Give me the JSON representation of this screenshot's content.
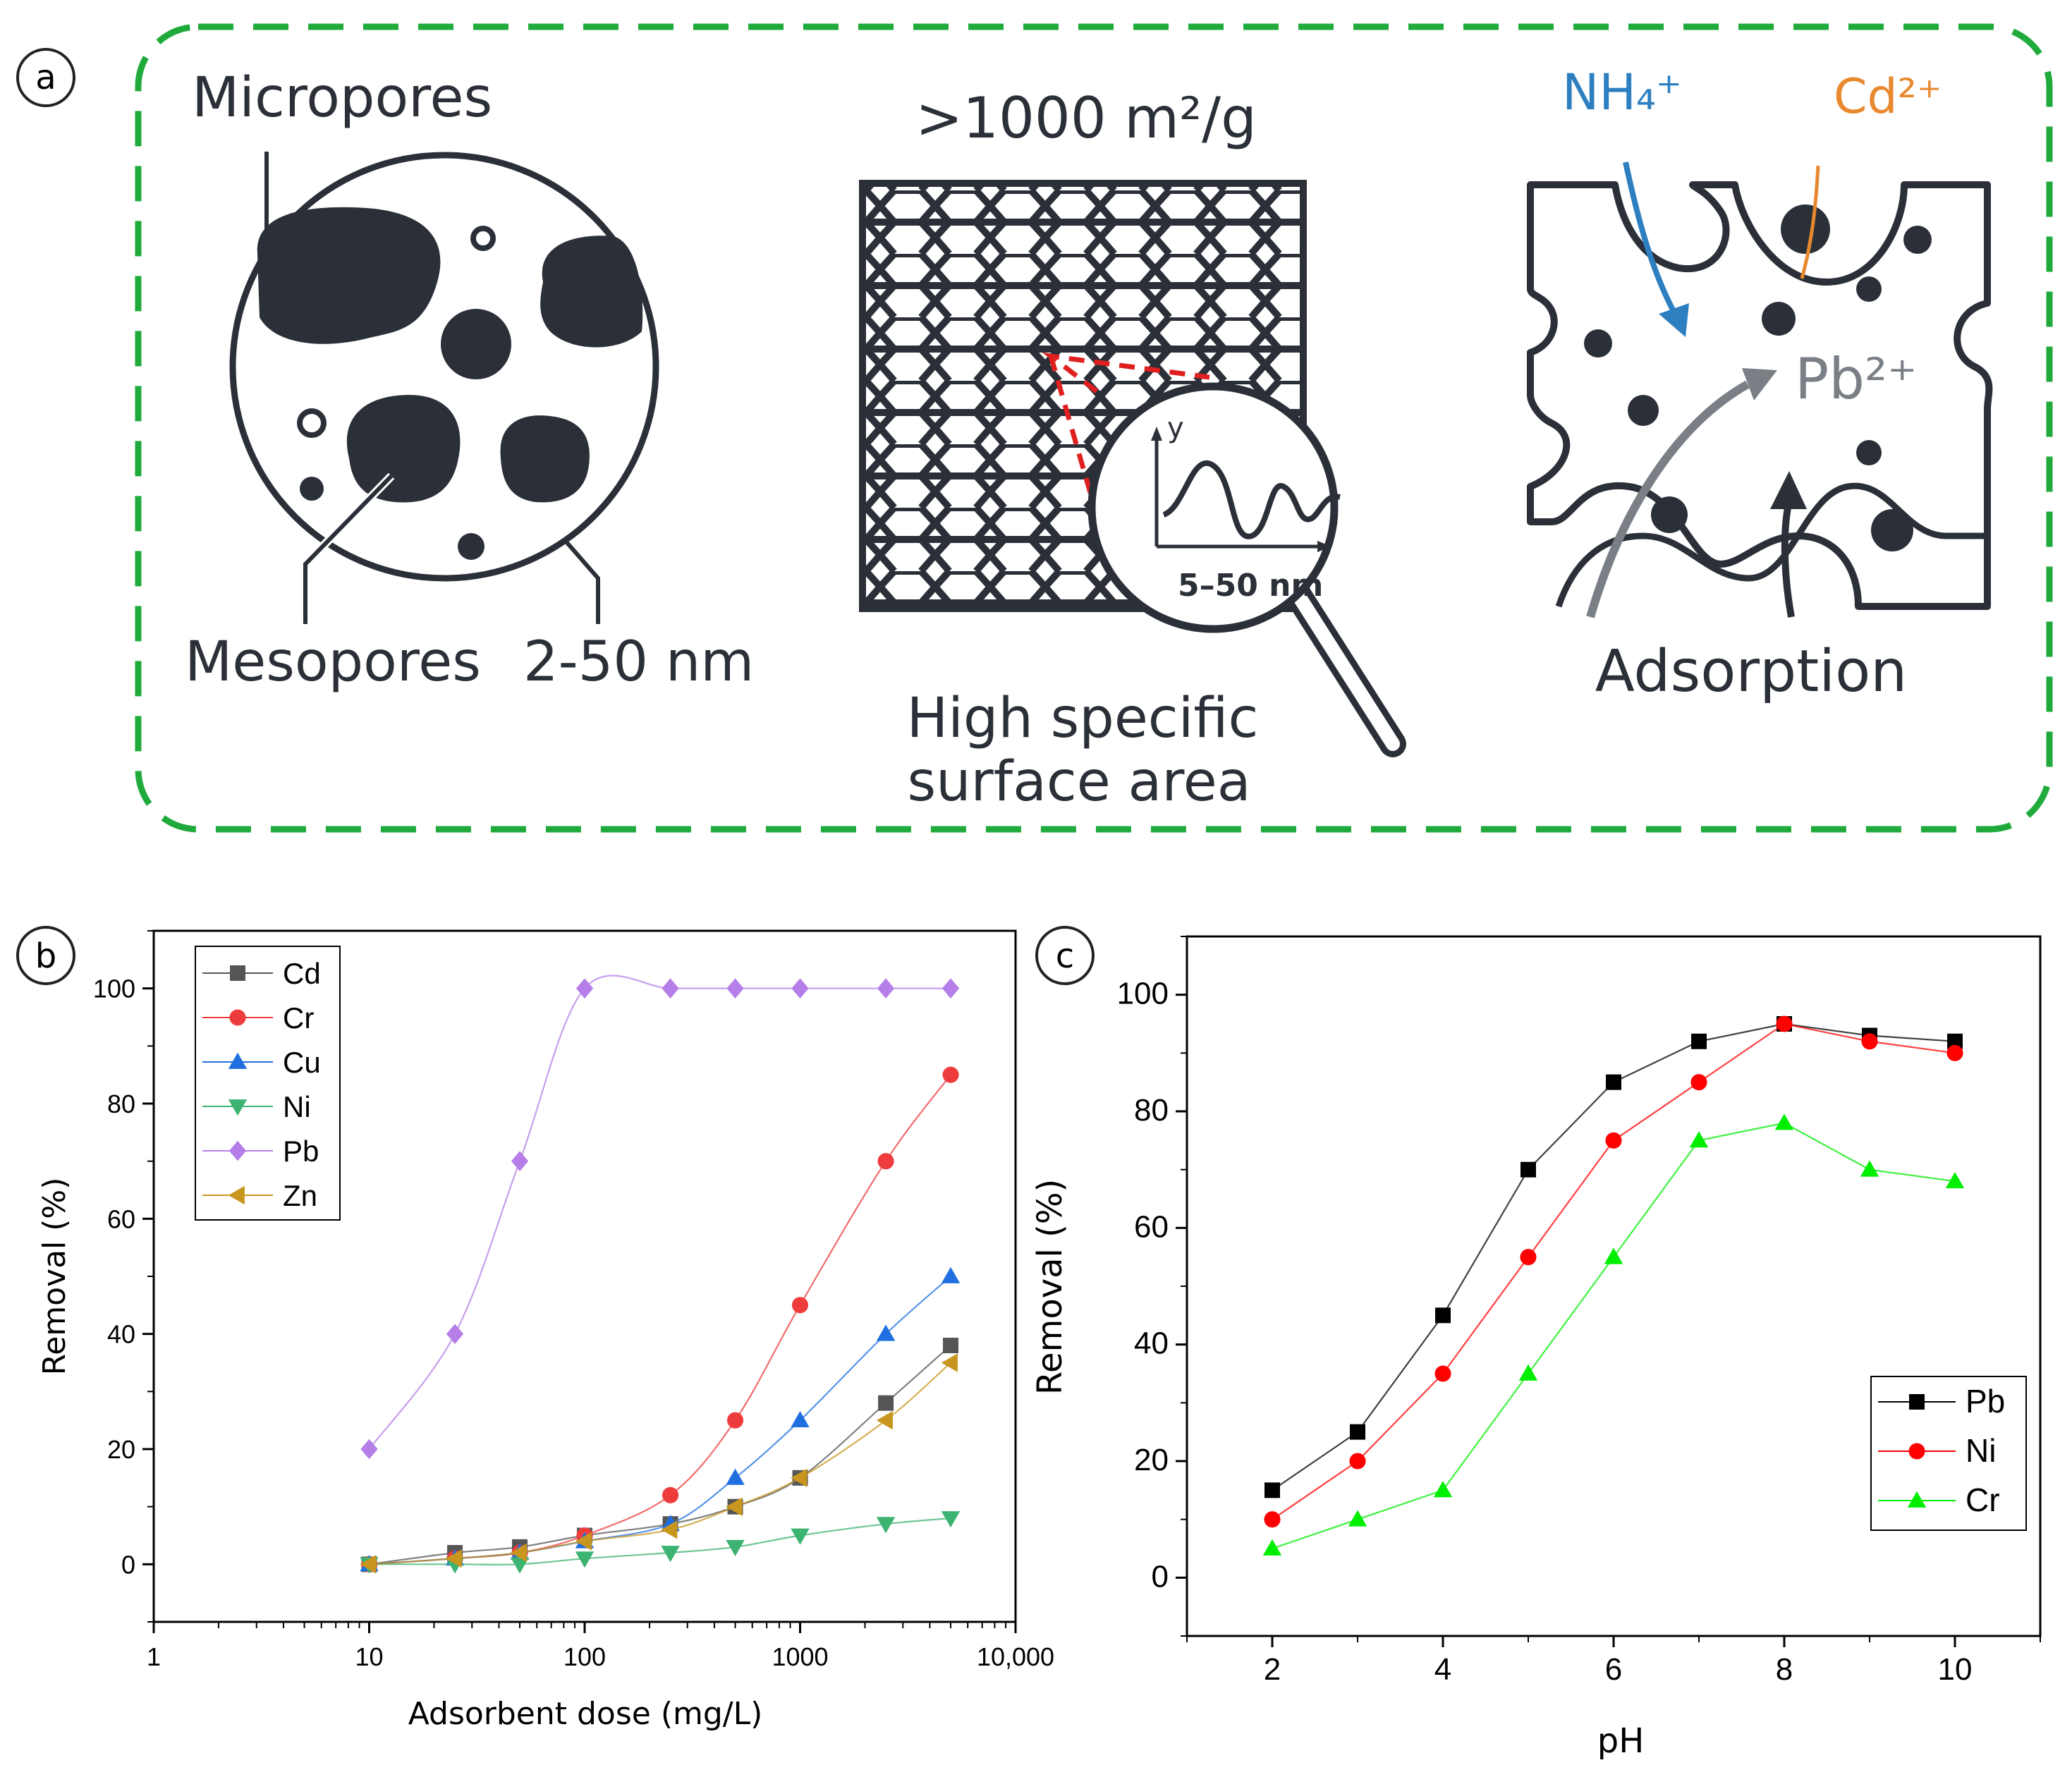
{
  "panel_a": {
    "label": "a",
    "micropores_label": "Micropores",
    "mesopores_label": "Mesopores",
    "mesopore_range": "2-50 nm",
    "surface_area_value": ">1000 m²/g",
    "zoom_axis_y": "y",
    "zoom_range": "5–50 nm",
    "high_surface_line1": "High specific",
    "high_surface_line2": "surface area",
    "ion_nh4": "NH₄⁺",
    "ion_cd": "Cd²⁺",
    "ion_pb": "Pb²⁺",
    "adsorption_label": "Adsorption",
    "colors": {
      "frame": "#1faa3b",
      "ink": "#2b3038",
      "nh4": "#2e7fc0",
      "cd": "#e8882f",
      "pb": "#7a7f86",
      "zoom_box": "#e02020"
    }
  },
  "chart_data": [
    {
      "panel_label": "b",
      "type": "line",
      "xscale": "log",
      "xlabel": "Adsorbent dose (mg/L)",
      "ylabel": "Removal (%)",
      "xlim": [
        1,
        10000
      ],
      "ylim": [
        -10,
        110
      ],
      "xticks": [
        1,
        10,
        100,
        1000,
        10000
      ],
      "xtick_labels": [
        "1",
        "10",
        "100",
        "1000",
        "10,000"
      ],
      "yticks": [
        0,
        20,
        40,
        60,
        80,
        100
      ],
      "ytick_labels": [
        "0",
        "20",
        "40",
        "60",
        "80",
        "100"
      ],
      "legend_position": "top-left",
      "x": [
        10,
        25,
        50,
        100,
        250,
        500,
        1000,
        2500,
        5000
      ],
      "series": [
        {
          "name": "Cd",
          "marker": "square",
          "color": "#555555",
          "values": [
            0,
            2,
            3,
            5,
            7,
            10,
            15,
            28,
            38
          ]
        },
        {
          "name": "Cr",
          "marker": "circle",
          "color": "#ee3b3b",
          "values": [
            0,
            1,
            2,
            5,
            12,
            25,
            45,
            70,
            85
          ]
        },
        {
          "name": "Cu",
          "marker": "triangle-up",
          "color": "#1f6fe0",
          "values": [
            0,
            1,
            2,
            4,
            7,
            15,
            25,
            40,
            50
          ]
        },
        {
          "name": "Ni",
          "marker": "triangle-down",
          "color": "#3cb371",
          "values": [
            0,
            0,
            0,
            1,
            2,
            3,
            5,
            7,
            8
          ]
        },
        {
          "name": "Pb",
          "marker": "diamond",
          "color": "#b57ee8",
          "values": [
            20,
            40,
            70,
            100,
            100,
            100,
            100,
            100,
            100
          ]
        },
        {
          "name": "Zn",
          "marker": "triangle-left",
          "color": "#c8961e",
          "values": [
            0,
            1,
            2,
            4,
            6,
            10,
            15,
            25,
            35
          ]
        }
      ]
    },
    {
      "panel_label": "c",
      "type": "line",
      "xscale": "linear",
      "xlabel": "pH",
      "ylabel": "Removal (%)",
      "xlim": [
        1,
        11
      ],
      "ylim": [
        -10,
        110
      ],
      "xticks": [
        2,
        4,
        6,
        8,
        10
      ],
      "xtick_labels": [
        "2",
        "4",
        "6",
        "8",
        "10"
      ],
      "yticks": [
        0,
        20,
        40,
        60,
        80,
        100
      ],
      "ytick_labels": [
        "0",
        "20",
        "40",
        "60",
        "80",
        "100"
      ],
      "legend_position": "bottom-right",
      "x": [
        2,
        3,
        4,
        5,
        6,
        7,
        8,
        9,
        10
      ],
      "series": [
        {
          "name": "Pb",
          "marker": "square",
          "color": "#000000",
          "values": [
            15,
            25,
            45,
            70,
            85,
            92,
            95,
            93,
            92
          ]
        },
        {
          "name": "Ni",
          "marker": "circle",
          "color": "#ff0000",
          "values": [
            10,
            20,
            35,
            55,
            75,
            85,
            95,
            92,
            90
          ]
        },
        {
          "name": "Cr",
          "marker": "triangle-up",
          "color": "#00ee00",
          "values": [
            5,
            10,
            15,
            35,
            55,
            75,
            78,
            70,
            68
          ]
        }
      ]
    }
  ]
}
